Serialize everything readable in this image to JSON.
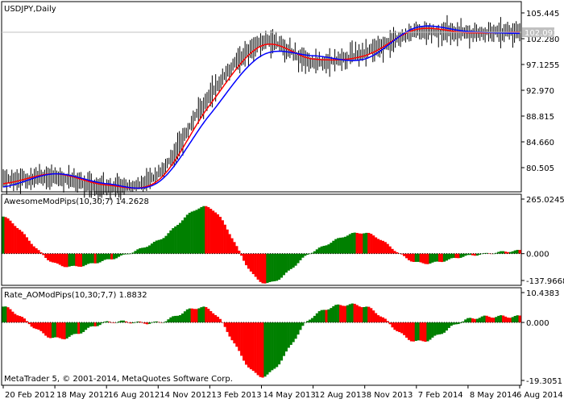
{
  "chart": {
    "title": "USDJPY,Daily",
    "price_scale": [
      "105.445",
      "102.280",
      "97.1255",
      "92.970",
      "88.815",
      "84.660",
      "80.505"
    ],
    "current_price": "102.093",
    "current_price_color": "#c0c0c0",
    "bull_line_color": "#0000ff",
    "red_line_color": "#ff0000"
  },
  "indicator1": {
    "title": "AwesomeModPips(10,30;7) 14.2628",
    "scale": [
      "265.0245",
      "0.000",
      "-137.9668"
    ],
    "up_color": "#008000",
    "down_color": "#ff0000"
  },
  "indicator2": {
    "title": "Rate_AOModPips(10,30;7,7) 1.8832",
    "scale": [
      "10.4383",
      "0.000",
      "-19.3051"
    ],
    "copyright": "MetaTrader 5, © 2001-2014, MetaQuotes Software Corp."
  },
  "time_axis": [
    "20 Feb 2012",
    "18 May 2012",
    "16 Aug 2012",
    "14 Nov 2012",
    "13 Feb 2013",
    "14 May 2013",
    "12 Aug 2013",
    "8 Nov 2013",
    "7 Feb 2014",
    "8 May 2014",
    "6 Aug 2014"
  ],
  "chart_data": [
    {
      "type": "line",
      "title": "USDJPY,Daily",
      "x": [
        "20 Feb 2012",
        "18 May 2012",
        "16 Aug 2012",
        "14 Nov 2012",
        "13 Feb 2013",
        "14 May 2013",
        "12 Aug 2013",
        "8 Nov 2013",
        "7 Feb 2014",
        "8 May 2014",
        "6 Aug 2014"
      ],
      "series": [
        {
          "name": "",
          "values": [
            79.5,
            80.0,
            78.5,
            80.5,
            92.5,
            100.5,
            97.5,
            99.0,
            102.0,
            102.0,
            102.1
          ]
        },
        {
          "name": "",
          "values": [
            79.0,
            80.5,
            78.8,
            79.5,
            91.0,
            100.0,
            98.0,
            98.5,
            102.5,
            102.0,
            102.1
          ]
        },
        {
          "name": "",
          "values": [
            78.5,
            80.5,
            79.0,
            79.2,
            89.5,
            98.5,
            98.5,
            98.0,
            102.8,
            102.2,
            101.9
          ]
        }
      ],
      "ylim": [
        78.0,
        106.5
      ]
    },
    {
      "type": "bar",
      "title": "AwesomeModPips(10,30;7) 14.2628",
      "categories": [
        "20 Feb 2012",
        "18 May 2012",
        "16 Aug 2012",
        "14 Nov 2012",
        "13 Feb 2013",
        "14 May 2013",
        "12 Aug 2013",
        "8 Nov 2013",
        "7 Feb 2014",
        "8 May 2014",
        "6 Aug 2014"
      ],
      "values": [
        170,
        -45,
        -30,
        60,
        210,
        -130,
        10,
        95,
        -40,
        -10,
        14
      ],
      "ylim": [
        -137.9668,
        265.0245
      ]
    },
    {
      "type": "bar",
      "title": "Rate_AOModPips(10,30;7,7) 1.8832",
      "categories": [
        "20 Feb 2012",
        "18 May 2012",
        "16 Aug 2012",
        "14 Nov 2012",
        "13 Feb 2013",
        "14 May 2013",
        "12 Aug 2013",
        "8 Nov 2013",
        "7 Feb 2014",
        "8 May 2014",
        "6 Aug 2014"
      ],
      "values": [
        5,
        -5,
        0,
        0,
        4,
        -17,
        2,
        5,
        -6,
        1,
        1.88
      ],
      "ylim": [
        -19.3051,
        10.4383
      ]
    }
  ]
}
